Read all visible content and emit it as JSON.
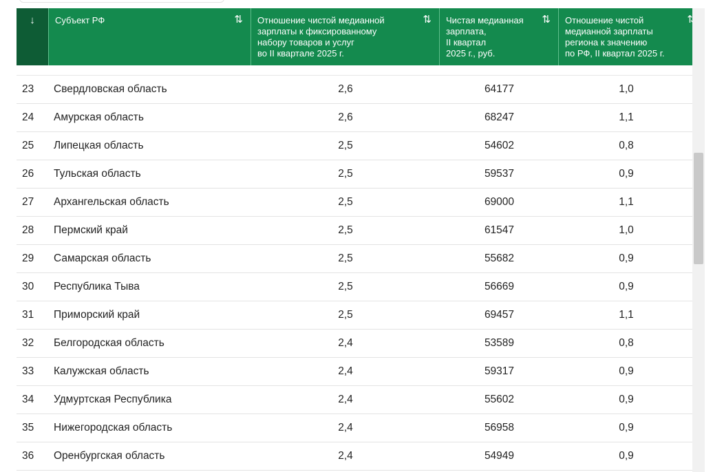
{
  "table": {
    "headers": {
      "index_arrow": "↓",
      "name": "Субъект РФ",
      "ratio": "Отношение чистой медианной\nзарплаты к фиксированному\nнабору товаров и услуг\nво II квартале 2025 г.",
      "wage": "Чистая медианная\nзарплата,\nII квартал\n2025 г., руб.",
      "relative": "Отношение чистой\nмедианной зарплаты\nрегиона к значению\nпо РФ, II квартал 2025 г.",
      "sort_icon": "⇅"
    },
    "rows": [
      {
        "idx": "23",
        "name": "Свердловская область",
        "ratio": "2,6",
        "wage": "64177",
        "relative": "1,0"
      },
      {
        "idx": "24",
        "name": "Амурская область",
        "ratio": "2,6",
        "wage": "68247",
        "relative": "1,1"
      },
      {
        "idx": "25",
        "name": "Липецкая область",
        "ratio": "2,5",
        "wage": "54602",
        "relative": "0,8"
      },
      {
        "idx": "26",
        "name": "Тульская область",
        "ratio": "2,5",
        "wage": "59537",
        "relative": "0,9"
      },
      {
        "idx": "27",
        "name": "Архангельская область",
        "ratio": "2,5",
        "wage": "69000",
        "relative": "1,1"
      },
      {
        "idx": "28",
        "name": "Пермский край",
        "ratio": "2,5",
        "wage": "61547",
        "relative": "1,0"
      },
      {
        "idx": "29",
        "name": "Самарская область",
        "ratio": "2,5",
        "wage": "55682",
        "relative": "0,9"
      },
      {
        "idx": "30",
        "name": "Республика Тыва",
        "ratio": "2,5",
        "wage": "56669",
        "relative": "0,9"
      },
      {
        "idx": "31",
        "name": "Приморский край",
        "ratio": "2,5",
        "wage": "69457",
        "relative": "1,1"
      },
      {
        "idx": "32",
        "name": "Белгородская область",
        "ratio": "2,4",
        "wage": "53589",
        "relative": "0,8"
      },
      {
        "idx": "33",
        "name": "Калужская область",
        "ratio": "2,4",
        "wage": "59317",
        "relative": "0,9"
      },
      {
        "idx": "34",
        "name": "Удмуртская Республика",
        "ratio": "2,4",
        "wage": "55602",
        "relative": "0,9"
      },
      {
        "idx": "35",
        "name": "Нижегородская область",
        "ratio": "2,4",
        "wage": "56958",
        "relative": "0,9"
      },
      {
        "idx": "36",
        "name": "Оренбургская область",
        "ratio": "2,4",
        "wage": "54949",
        "relative": "0,9"
      }
    ]
  },
  "colors": {
    "header_bg": "#148a4e",
    "index_header_bg": "#0e5c35",
    "header_text": "#ffffff"
  }
}
